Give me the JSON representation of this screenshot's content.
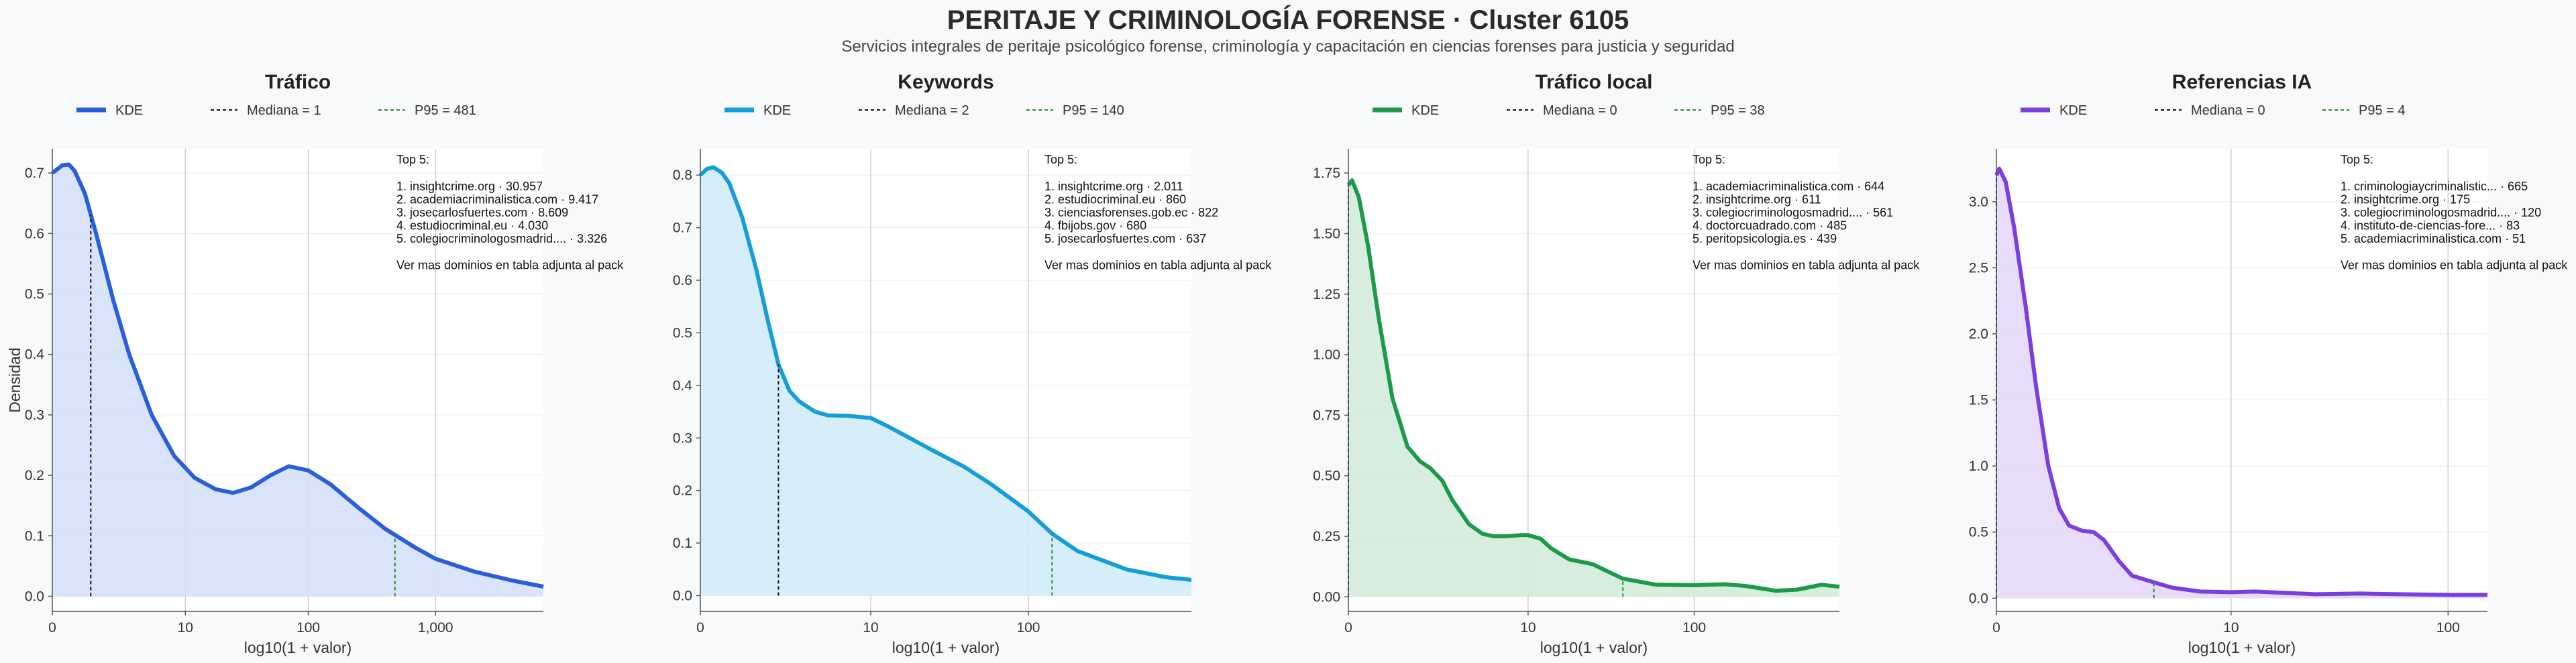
{
  "header": {
    "title": "PERITAJE Y CRIMINOLOGÍA FORENSE · Cluster 6105",
    "subtitle": "Servicios integrales de peritaje psicológico forense, criminología y capacitación en ciencias forenses para justicia y seguridad"
  },
  "shared": {
    "ylabel": "Densidad",
    "xlabel": "log10(1 + valor)",
    "grid": true,
    "legend_placement": "top-center"
  },
  "chart_data": [
    {
      "type": "area",
      "title": "Tráfico",
      "color": "#2a5fdb",
      "fill": "#d5e0f8",
      "legend": [
        "KDE",
        "Mediana = 1",
        "P95 = 481"
      ],
      "median_x": 1,
      "p95_x": 481,
      "x_ticks": [
        0,
        10,
        100,
        1000
      ],
      "x_tick_labels": [
        "0",
        "10",
        "100",
        "1,000"
      ],
      "x_max": 7000,
      "y_ticks": [
        0,
        0.1,
        0.2,
        0.3,
        0.4,
        0.5,
        0.6,
        0.7
      ],
      "y_tick_labels": [
        "0.0",
        "0.1",
        "0.2",
        "0.3",
        "0.4",
        "0.5",
        "0.6",
        "0.7"
      ],
      "ylim": [
        -0.025,
        0.74
      ],
      "x": [
        0,
        0.2,
        0.35,
        0.5,
        0.8,
        1.2,
        2,
        3,
        5,
        8,
        12,
        18,
        25,
        35,
        50,
        70,
        100,
        150,
        250,
        400,
        700,
        1000,
        2000,
        4000,
        7000
      ],
      "y": [
        0.7,
        0.713,
        0.714,
        0.703,
        0.666,
        0.6,
        0.49,
        0.4,
        0.3,
        0.232,
        0.196,
        0.177,
        0.171,
        0.18,
        0.2,
        0.215,
        0.208,
        0.185,
        0.146,
        0.112,
        0.08,
        0.062,
        0.041,
        0.026,
        0.016
      ],
      "top5_header": "Top 5:",
      "top5": [
        "1. insightcrime.org · 30.957",
        "2. academiacriminalistica.com · 9.417",
        "3. josecarlosfuertes.com · 8.609",
        "4. estudiocriminal.eu · 4.030",
        "5. colegiocriminologosmadrid.... · 3.326"
      ],
      "top5_footer": "Ver mas dominios en tabla adjunta al pack"
    },
    {
      "type": "area",
      "title": "Keywords",
      "color": "#169ed9",
      "fill": "#d2ecf8",
      "legend": [
        "KDE",
        "Mediana = 2",
        "P95 = 140"
      ],
      "median_x": 2,
      "p95_x": 140,
      "x_ticks": [
        0,
        10,
        100
      ],
      "x_tick_labels": [
        "0",
        "10",
        "100"
      ],
      "x_max": 1000,
      "y_ticks": [
        0,
        0.1,
        0.2,
        0.3,
        0.4,
        0.5,
        0.6,
        0.7,
        0.8
      ],
      "y_tick_labels": [
        "0.0",
        "0.1",
        "0.2",
        "0.3",
        "0.4",
        "0.5",
        "0.6",
        "0.7",
        "0.8"
      ],
      "ylim": [
        -0.03,
        0.85
      ],
      "x": [
        0,
        0.1,
        0.2,
        0.35,
        0.5,
        0.8,
        1.2,
        1.6,
        2.0,
        2.5,
        3,
        4,
        5,
        7,
        10,
        13,
        18,
        25,
        40,
        60,
        100,
        140,
        200,
        400,
        700,
        1000
      ],
      "y": [
        0.8,
        0.812,
        0.815,
        0.805,
        0.785,
        0.72,
        0.62,
        0.52,
        0.44,
        0.39,
        0.37,
        0.35,
        0.343,
        0.342,
        0.338,
        0.322,
        0.3,
        0.277,
        0.245,
        0.21,
        0.16,
        0.118,
        0.085,
        0.05,
        0.035,
        0.03
      ],
      "top5_header": "Top 5:",
      "top5": [
        "1. insightcrime.org · 2.011",
        "2. estudiocriminal.eu · 860",
        "3. cienciasforenses.gob.ec · 822",
        "4. fbijobs.gov · 680",
        "5. josecarlosfuertes.com · 637"
      ],
      "top5_footer": "Ver mas dominios en tabla adjunta al pack"
    },
    {
      "type": "area",
      "title": "Tráfico local",
      "color": "#1c9a4a",
      "fill": "#d3ecdb",
      "legend": [
        "KDE",
        "Mediana = 0",
        "P95 = 38"
      ],
      "median_x": 0,
      "p95_x": 38,
      "x_ticks": [
        0,
        10,
        100
      ],
      "x_tick_labels": [
        "0",
        "10",
        "100"
      ],
      "x_max": 700,
      "y_ticks": [
        0,
        0.25,
        0.5,
        0.75,
        1.0,
        1.25,
        1.5,
        1.75
      ],
      "y_tick_labels": [
        "0.00",
        "0.25",
        "0.50",
        "0.75",
        "1.00",
        "1.25",
        "1.50",
        "1.75"
      ],
      "ylim": [
        -0.06,
        1.85
      ],
      "x": [
        0,
        0.05,
        0.15,
        0.3,
        0.5,
        0.8,
        1.2,
        1.6,
        2,
        2.5,
        3,
        4,
        5,
        6,
        7,
        8,
        9,
        10,
        12,
        14,
        18,
        25,
        38,
        60,
        100,
        150,
        200,
        300,
        400,
        550,
        700
      ],
      "y": [
        1.7,
        1.72,
        1.65,
        1.45,
        1.15,
        0.82,
        0.62,
        0.56,
        0.53,
        0.48,
        0.4,
        0.3,
        0.26,
        0.25,
        0.25,
        0.252,
        0.255,
        0.255,
        0.24,
        0.2,
        0.155,
        0.135,
        0.075,
        0.05,
        0.048,
        0.052,
        0.045,
        0.025,
        0.03,
        0.05,
        0.042
      ],
      "top5_header": "Top 5:",
      "top5": [
        "1. academiacriminalistica.com · 644",
        "2. insightcrime.org · 611",
        "3. colegiocriminologosmadrid.... · 561",
        "4. doctorcuadrado.com · 485",
        "5. peritopsicologia.es · 439"
      ],
      "top5_footer": "Ver mas dominios en tabla adjunta al pack"
    },
    {
      "type": "area",
      "title": "Referencias IA",
      "color": "#7b3fe0",
      "fill": "#e4d8f8",
      "legend": [
        "KDE",
        "Mediana = 0",
        "P95 = 4"
      ],
      "median_x": 0,
      "p95_x": 4,
      "x_ticks": [
        0,
        10,
        100
      ],
      "x_tick_labels": [
        "0",
        "10",
        "100"
      ],
      "x_max": 150,
      "y_ticks": [
        0,
        0.5,
        1.0,
        1.5,
        2.0,
        2.5,
        3.0
      ],
      "y_tick_labels": [
        "0.0",
        "0.5",
        "1.0",
        "1.5",
        "2.0",
        "2.5",
        "3.0"
      ],
      "ylim": [
        -0.1,
        3.4
      ],
      "x": [
        0,
        0.03,
        0.1,
        0.2,
        0.35,
        0.5,
        0.7,
        0.9,
        1.1,
        1.4,
        1.7,
        2,
        2.5,
        3,
        4,
        5,
        7,
        10,
        13,
        18,
        25,
        40,
        60,
        100,
        150
      ],
      "y": [
        3.2,
        3.25,
        3.15,
        2.8,
        2.2,
        1.6,
        1.0,
        0.68,
        0.55,
        0.51,
        0.5,
        0.44,
        0.28,
        0.17,
        0.12,
        0.08,
        0.05,
        0.045,
        0.05,
        0.04,
        0.03,
        0.035,
        0.03,
        0.025,
        0.025
      ],
      "top5_header": "Top 5:",
      "top5": [
        "1. criminologiaycriminalistic... · 665",
        "2. insightcrime.org · 175",
        "3. colegiocriminologosmadrid.... · 120",
        "4. instituto-de-ciencias-fore... · 83",
        "5. academiacriminalistica.com · 51"
      ],
      "top5_footer": "Ver mas dominios en tabla adjunta al pack"
    }
  ]
}
